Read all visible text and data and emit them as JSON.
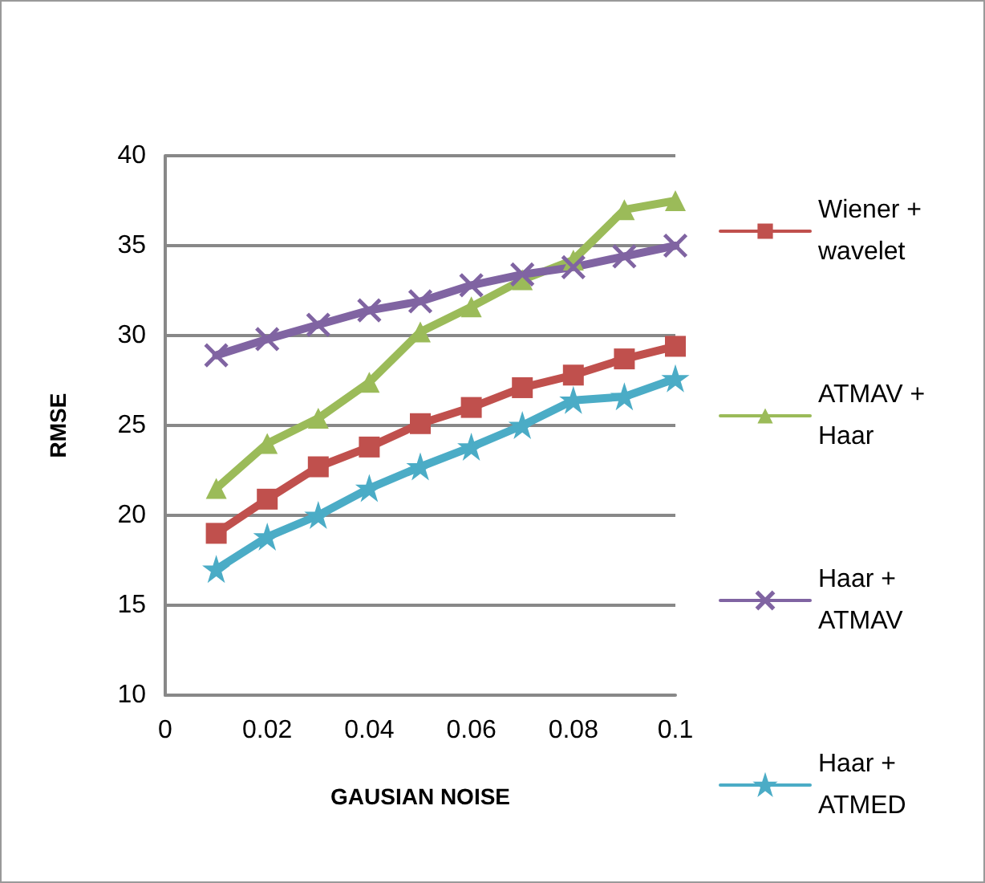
{
  "chart_data": {
    "type": "line",
    "xlabel": "GAUSIAN NOISE",
    "ylabel": "RMSE",
    "x": [
      0.01,
      0.02,
      0.03,
      0.04,
      0.05,
      0.06,
      0.07,
      0.08,
      0.09,
      0.1
    ],
    "series": [
      {
        "name": "Wiener + wavelet",
        "color": "#c0504d",
        "marker": "square",
        "values": [
          19.0,
          20.9,
          22.7,
          23.8,
          25.1,
          26.0,
          27.1,
          27.8,
          28.7,
          29.4
        ]
      },
      {
        "name": "ATMAV + Haar",
        "color": "#9bbb59",
        "marker": "triangle",
        "values": [
          21.5,
          24.0,
          25.4,
          27.4,
          30.2,
          31.6,
          33.1,
          34.2,
          37.0,
          37.5
        ]
      },
      {
        "name": "Haar + ATMAV",
        "color": "#8064a2",
        "marker": "cross",
        "values": [
          28.9,
          29.8,
          30.6,
          31.4,
          31.9,
          32.8,
          33.4,
          33.8,
          34.4,
          35.0
        ]
      },
      {
        "name": "Haar + ATMED",
        "color": "#4bacc6",
        "marker": "star",
        "values": [
          17.0,
          18.8,
          20.0,
          21.5,
          22.7,
          23.8,
          25.0,
          26.4,
          26.6,
          27.6
        ]
      }
    ],
    "xlim": [
      0,
      0.1
    ],
    "xticks": [
      0,
      0.02,
      0.04,
      0.06,
      0.08,
      0.1
    ],
    "ylim": [
      10,
      40
    ],
    "yticks": [
      10,
      15,
      20,
      25,
      30,
      35,
      40
    ],
    "grid": "y",
    "legend": "right",
    "line_style": "solid"
  }
}
